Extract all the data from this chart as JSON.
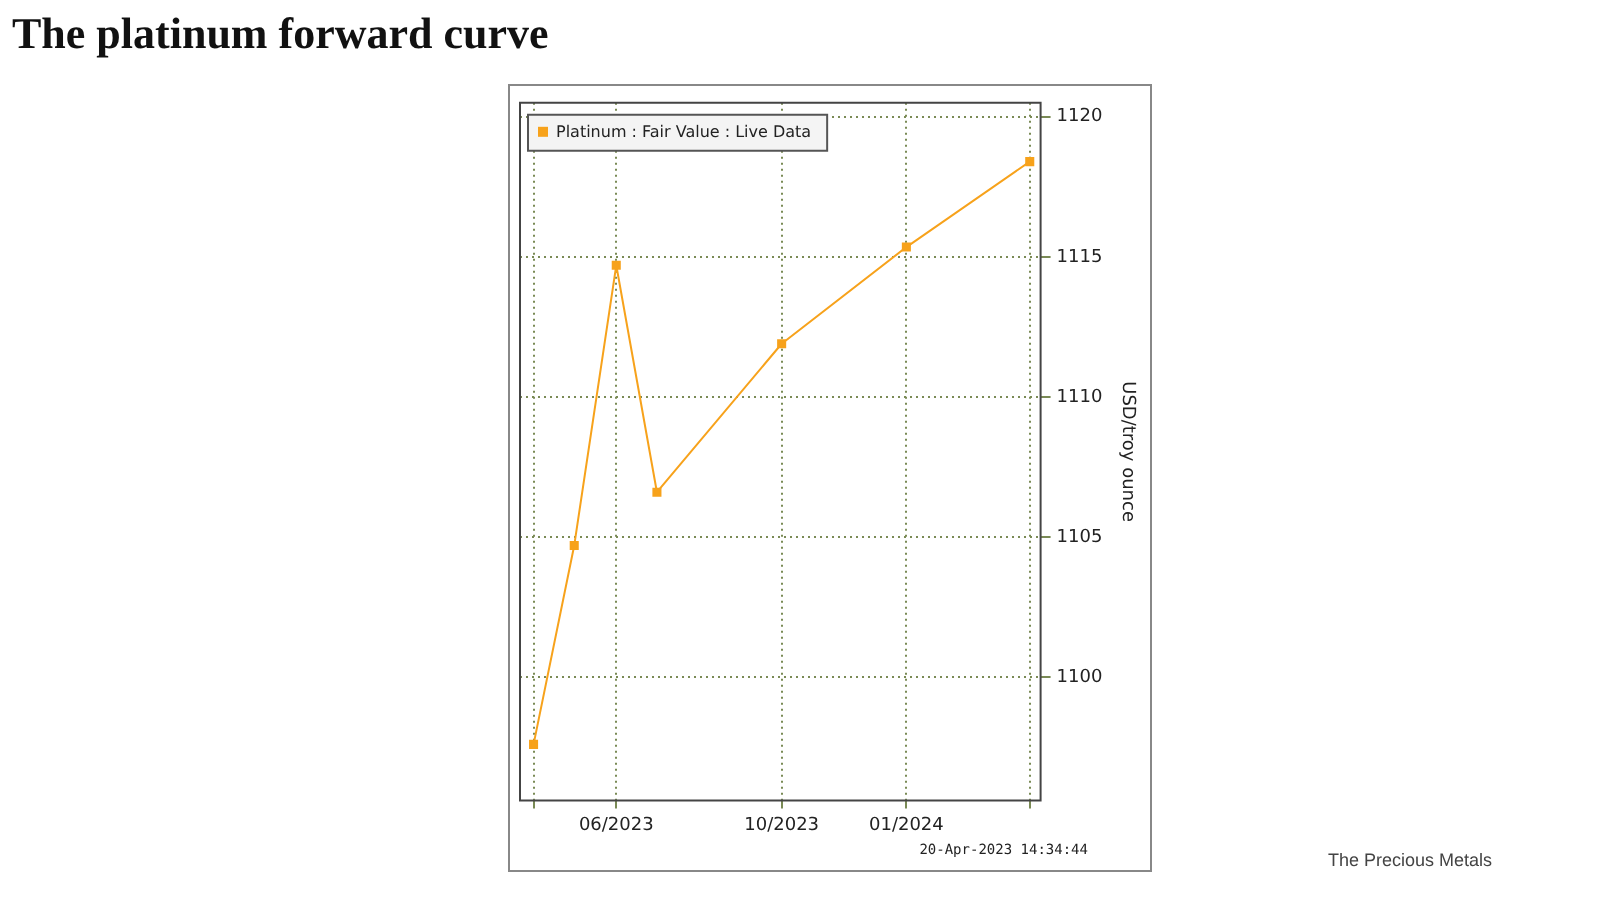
{
  "chart_data": {
    "type": "line",
    "title": "The platinum forward curve",
    "ylabel": "USD/troy ounce",
    "x": [
      "2023-04-01",
      "2023-05-01",
      "2023-06-01",
      "2023-07-01",
      "2023-10-01",
      "2024-01-01",
      "2024-04-01"
    ],
    "series": [
      {
        "name": "Platinum : Fair Value : Live Data",
        "color": "#f7a21b",
        "values": [
          1097.6,
          1104.7,
          1114.7,
          1106.6,
          1111.9,
          1115.35,
          1118.4
        ]
      }
    ],
    "xlim": [
      "2023-03-22",
      "2024-04-09"
    ],
    "xticks": [
      {
        "value": "2023-04-01",
        "label": null
      },
      {
        "value": "2023-06-01",
        "label": "06/2023"
      },
      {
        "value": "2023-10-01",
        "label": "10/2023"
      },
      {
        "value": "2024-01-01",
        "label": "01/2024"
      },
      {
        "value": "2024-04-01",
        "label": null
      }
    ],
    "ylim": [
      1095.6,
      1120.5
    ],
    "yticks": [
      1100,
      1105,
      1110,
      1115,
      1120
    ],
    "grid": true,
    "legend": "top left",
    "marker": "square",
    "line_style": "solid",
    "annotations": [
      "20-Apr-2023 14:34:44",
      "The Precious Metals"
    ]
  }
}
